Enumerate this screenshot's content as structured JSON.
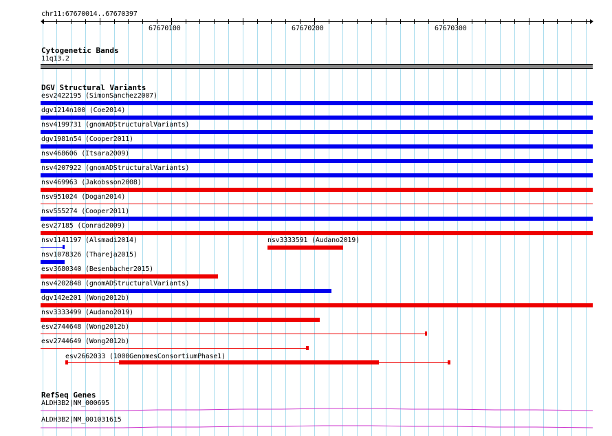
{
  "ruler": {
    "location": "chr11:67670014..67670397",
    "labels": [
      "67670100",
      "67670200",
      "67670300"
    ]
  },
  "cytoband": {
    "title": "Cytogenetic Bands",
    "band": "11q13.2",
    "color": "#888888"
  },
  "dgv": {
    "title": "DGV Structural Variants",
    "colors": {
      "gain": "#0000ee",
      "loss": "#ee0000"
    },
    "variants": [
      {
        "label": "esv2422195 (SimonSanchez2007)",
        "type": "gain"
      },
      {
        "label": "dgv1214n100 (Coe2014)",
        "type": "gain"
      },
      {
        "label": "nsv4199731 (gnomADStructuralVariants)",
        "type": "gain"
      },
      {
        "label": "dgv1981n54 (Cooper2011)",
        "type": "gain"
      },
      {
        "label": "nsv468606 (Itsara2009)",
        "type": "gain"
      },
      {
        "label": "nsv4207922 (gnomADStructuralVariants)",
        "type": "gain"
      },
      {
        "label": "nsv469963 (Jakobsson2008)",
        "type": "loss"
      },
      {
        "label": "nsv951024 (Dogan2014)",
        "type": "loss"
      },
      {
        "label": "nsv555274 (Cooper2011)",
        "type": "gain"
      },
      {
        "label": "esv27185 (Conrad2009)",
        "type": "loss"
      },
      {
        "label": "nsv1141197 (Alsmadi2014)",
        "type": "gain"
      },
      {
        "label": "nsv3333591 (Audano2019)",
        "type": "loss"
      },
      {
        "label": "nsv1078326 (Thareja2015)",
        "type": "gain"
      },
      {
        "label": "esv3680340 (Besenbacher2015)",
        "type": "loss"
      },
      {
        "label": "nsv4202848 (gnomADStructuralVariants)",
        "type": "gain"
      },
      {
        "label": "dgv142e201 (Wong2012b)",
        "type": "loss"
      },
      {
        "label": "nsv3333499 (Audano2019)",
        "type": "loss"
      },
      {
        "label": "esv2744648 (Wong2012b)",
        "type": "loss"
      },
      {
        "label": "esv2744649 (Wong2012b)",
        "type": "loss"
      },
      {
        "label": "esv2662033 (1000GenomesConsortiumPhase1)",
        "type": "loss"
      }
    ]
  },
  "refseq": {
    "title": "RefSeq Genes",
    "color": "#cc33cc",
    "genes": [
      {
        "label": "ALDH3B2|NM_000695"
      },
      {
        "label": "ALDH3B2|NM_001031615"
      }
    ]
  },
  "grid_color": "#aaddee"
}
